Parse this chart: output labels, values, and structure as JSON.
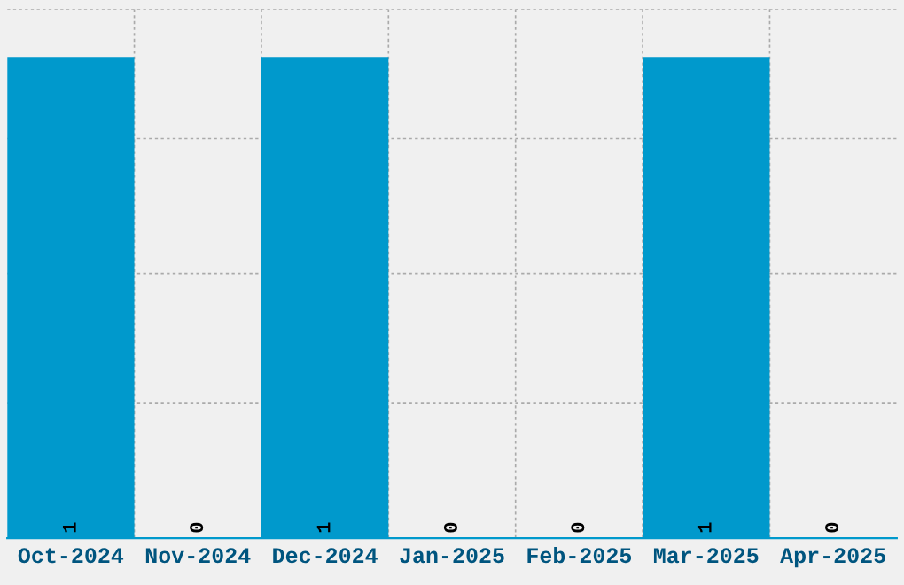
{
  "chart_data": {
    "type": "bar",
    "categories": [
      "Oct-2024",
      "Nov-2024",
      "Dec-2024",
      "Jan-2025",
      "Feb-2025",
      "Mar-2025",
      "Apr-2025"
    ],
    "values": [
      1,
      0,
      1,
      0,
      0,
      1,
      0
    ],
    "color": "#0099cc",
    "ylim": [
      0,
      1.1
    ],
    "yticks": [
      {
        "value": 0.28,
        "label": null
      },
      {
        "value": 0.55,
        "label": null
      },
      {
        "value": 0.83,
        "label": null
      },
      {
        "value": 1.1,
        "label": null
      }
    ],
    "tick_labels": "x",
    "grid": true,
    "data_labels": true
  }
}
